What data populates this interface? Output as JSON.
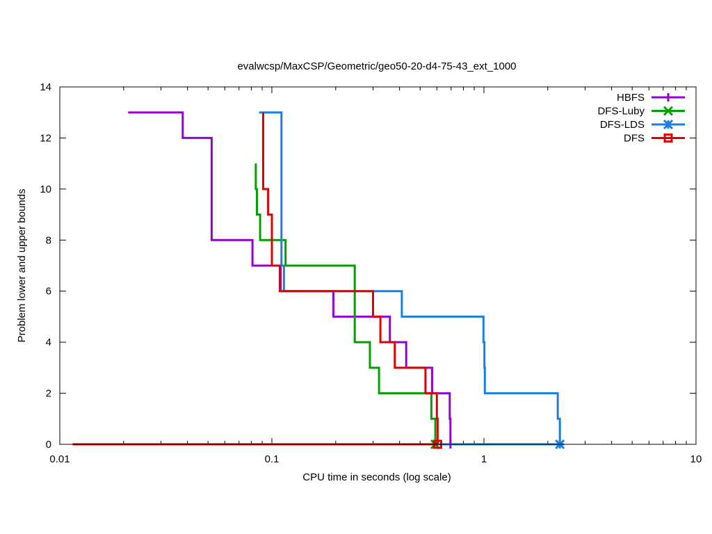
{
  "chart_data": {
    "type": "line",
    "title": "evalwcsp/MaxCSP/Geometric/geo50-20-d4-75-43_ext_1000",
    "xlabel": "CPU time in seconds (log scale)",
    "ylabel": "Problem lower and upper bounds",
    "xscale": "log",
    "xlim": [
      0.01,
      10
    ],
    "ylim": [
      0,
      14
    ],
    "xticks": [
      {
        "value": 0.01,
        "label": "0.01"
      },
      {
        "value": 0.1,
        "label": "0.1"
      },
      {
        "value": 1,
        "label": "1"
      },
      {
        "value": 10,
        "label": "10"
      }
    ],
    "yticks": [
      {
        "value": 0,
        "label": "0"
      },
      {
        "value": 2,
        "label": "2"
      },
      {
        "value": 4,
        "label": "4"
      },
      {
        "value": 6,
        "label": "6"
      },
      {
        "value": 8,
        "label": "8"
      },
      {
        "value": 10,
        "label": "10"
      },
      {
        "value": 12,
        "label": "12"
      },
      {
        "value": 14,
        "label": "14"
      }
    ],
    "legend_position": "top-right",
    "series": [
      {
        "name": "HBFS",
        "color": "#9400d3",
        "marker": "plus",
        "upper": [
          [
            0.021,
            13
          ],
          [
            0.038,
            13
          ],
          [
            0.038,
            12
          ],
          [
            0.052,
            12
          ],
          [
            0.052,
            8
          ],
          [
            0.081,
            8
          ],
          [
            0.081,
            7
          ],
          [
            0.11,
            7
          ],
          [
            0.11,
            6
          ],
          [
            0.195,
            6
          ],
          [
            0.195,
            5
          ],
          [
            0.36,
            5
          ],
          [
            0.36,
            4
          ],
          [
            0.43,
            4
          ],
          [
            0.43,
            3
          ],
          [
            0.57,
            3
          ],
          [
            0.57,
            2
          ],
          [
            0.69,
            2
          ],
          [
            0.69,
            1
          ],
          [
            0.695,
            1
          ],
          [
            0.695,
            0
          ]
        ],
        "lower": [
          [
            0.0115,
            0
          ],
          [
            0.695,
            0
          ]
        ]
      },
      {
        "name": "DFS-Luby",
        "color": "#00a000",
        "marker": "x",
        "upper": [
          [
            0.084,
            11
          ],
          [
            0.084,
            10
          ],
          [
            0.085,
            10
          ],
          [
            0.085,
            9
          ],
          [
            0.088,
            9
          ],
          [
            0.088,
            8
          ],
          [
            0.116,
            8
          ],
          [
            0.116,
            7
          ],
          [
            0.246,
            7
          ],
          [
            0.246,
            4
          ],
          [
            0.29,
            4
          ],
          [
            0.29,
            3
          ],
          [
            0.32,
            3
          ],
          [
            0.32,
            2
          ],
          [
            0.565,
            2
          ],
          [
            0.565,
            1
          ],
          [
            0.59,
            1
          ],
          [
            0.59,
            0
          ]
        ],
        "lower": [
          [
            0.0115,
            0
          ],
          [
            0.59,
            0
          ]
        ]
      },
      {
        "name": "DFS-LDS",
        "color": "#1a7fe0",
        "marker": "star",
        "upper": [
          [
            0.087,
            13
          ],
          [
            0.111,
            13
          ],
          [
            0.111,
            7
          ],
          [
            0.114,
            7
          ],
          [
            0.114,
            6
          ],
          [
            0.142,
            6
          ],
          [
            0.142,
            6
          ],
          [
            0.41,
            6
          ],
          [
            0.41,
            5
          ],
          [
            0.995,
            5
          ],
          [
            0.995,
            4
          ],
          [
            1.005,
            4
          ],
          [
            1.005,
            3
          ],
          [
            1.01,
            3
          ],
          [
            1.01,
            2
          ],
          [
            2.23,
            2
          ],
          [
            2.23,
            1
          ],
          [
            2.28,
            1
          ],
          [
            2.28,
            0
          ]
        ],
        "lower": [
          [
            0.0115,
            0
          ],
          [
            2.28,
            0
          ]
        ]
      },
      {
        "name": "DFS",
        "color": "#e00000",
        "marker": "square",
        "upper": [
          [
            0.091,
            13
          ],
          [
            0.091,
            10
          ],
          [
            0.096,
            10
          ],
          [
            0.096,
            9
          ],
          [
            0.1,
            9
          ],
          [
            0.1,
            7
          ],
          [
            0.109,
            7
          ],
          [
            0.109,
            6
          ],
          [
            0.3,
            6
          ],
          [
            0.3,
            5
          ],
          [
            0.325,
            5
          ],
          [
            0.325,
            4
          ],
          [
            0.38,
            4
          ],
          [
            0.38,
            3
          ],
          [
            0.53,
            3
          ],
          [
            0.53,
            2
          ],
          [
            0.6,
            2
          ],
          [
            0.6,
            1
          ],
          [
            0.605,
            1
          ],
          [
            0.605,
            0
          ]
        ],
        "lower": [
          [
            0.0115,
            0
          ],
          [
            0.605,
            0
          ]
        ]
      }
    ]
  }
}
